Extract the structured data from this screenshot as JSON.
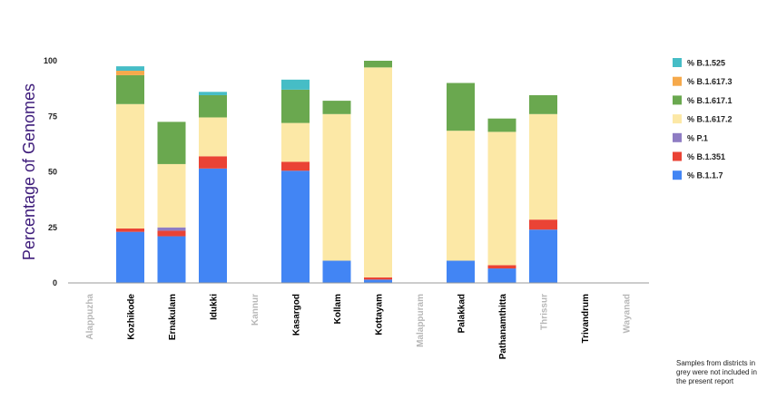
{
  "chart_data": {
    "type": "bar",
    "stacked": true,
    "ylabel": "Percentage of Genomes",
    "xlabel": "",
    "ylim": [
      0,
      100
    ],
    "yticks": [
      0,
      25,
      50,
      75,
      100
    ],
    "grid": false,
    "legend_position": "right",
    "categories": [
      "Alappuzha",
      "Kozhikode",
      "Ernakulam",
      "Idukki",
      "Kannur",
      "Kasargod",
      "Kollam",
      "Kottayam",
      "Malappuram",
      "Palakkad",
      "Pathanamthitta",
      "Thrissur",
      "Trivandrum",
      "Wayanad"
    ],
    "greyed_categories": [
      "Alappuzha",
      "Kannur",
      "Malappuram",
      "Thrissur",
      "Wayanad"
    ],
    "series": [
      {
        "name": "% B.1.1.7",
        "color": "#4285f4",
        "values": [
          0,
          23,
          21,
          51.5,
          0,
          50.5,
          10,
          1.5,
          0,
          10,
          6.5,
          24,
          0,
          0
        ]
      },
      {
        "name": "% B.1.351",
        "color": "#ea4335",
        "values": [
          0,
          1.5,
          2.5,
          5.5,
          0,
          4,
          0,
          1,
          0,
          0,
          1.5,
          4.5,
          0,
          0
        ]
      },
      {
        "name": "% P.1",
        "color": "#8e7cc3",
        "values": [
          0,
          0,
          1.5,
          0,
          0,
          0,
          0,
          0,
          0,
          0,
          0,
          0,
          0,
          0
        ]
      },
      {
        "name": "% B.1.617.2",
        "color": "#fce8a6",
        "values": [
          0,
          56,
          28.5,
          17.5,
          0,
          17.5,
          66,
          94.5,
          0,
          58.5,
          60,
          47.5,
          0,
          0
        ]
      },
      {
        "name": "% B.1.617.1",
        "color": "#6aa84f",
        "values": [
          0,
          13,
          19,
          10,
          0,
          15,
          6,
          3,
          0,
          21.5,
          6,
          8.5,
          0,
          0
        ]
      },
      {
        "name": "% B.1.617.3",
        "color": "#f6a94b",
        "values": [
          0,
          2,
          0,
          0,
          0,
          0,
          0,
          0,
          0,
          0,
          0,
          0,
          0,
          0
        ]
      },
      {
        "name": "% B.1.525",
        "color": "#46bdc6",
        "values": [
          0,
          2,
          0,
          1.5,
          0,
          4.5,
          0,
          0,
          0,
          0,
          0,
          0,
          0,
          0
        ]
      }
    ],
    "legend_order": [
      "% B.1.525",
      "% B.1.617.3",
      "% B.1.617.1",
      "% B.1.617.2",
      "% P.1",
      "% B.1.351",
      "% B.1.1.7"
    ]
  },
  "colors": {
    "ylabel": "#3d1b7a",
    "label_active": "#000000",
    "label_greyed": "#b7b7b7",
    "axis": "#999999"
  },
  "footnote": "Samples from districts in grey were not included in the present report"
}
